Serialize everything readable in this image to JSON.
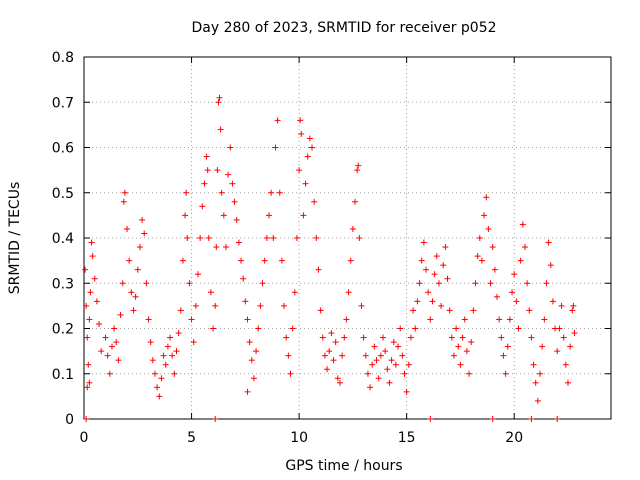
{
  "chart_data": {
    "type": "scatter",
    "title": "Day 280 of 2023, SRMTID for receiver p052",
    "xlabel": "GPS time / hours",
    "ylabel": "SRMTID / TECUs",
    "xlim": [
      0,
      24.5
    ],
    "ylim": [
      0,
      0.8
    ],
    "x_ticks": [
      0,
      5,
      10,
      15,
      20
    ],
    "y_ticks": [
      0,
      0.1,
      0.2,
      0.3,
      0.4,
      0.5,
      0.6,
      0.7,
      0.8
    ],
    "x_tick_labels": [
      "0",
      "5",
      "10",
      "15",
      "20"
    ],
    "y_tick_labels": [
      "0",
      "0.1",
      "0.2",
      "0.3",
      "0.4",
      "0.5",
      "0.6",
      "0.7",
      "0.8"
    ],
    "grid": true,
    "marker": "plus",
    "marker_color": "#ff0000",
    "series": [
      {
        "name": "SRMTID",
        "points": [
          [
            0.05,
            0.33
          ],
          [
            0.1,
            0.25
          ],
          [
            0.15,
            0.18
          ],
          [
            0.2,
            0.12
          ],
          [
            0.25,
            0.22
          ],
          [
            0.3,
            0.28
          ],
          [
            0.35,
            0.39
          ],
          [
            0.4,
            0.36
          ],
          [
            0.5,
            0.31
          ],
          [
            0.6,
            0.26
          ],
          [
            0.7,
            0.21
          ],
          [
            0.8,
            0.15
          ],
          [
            0.25,
            0.08
          ],
          [
            0.15,
            0.07
          ],
          [
            1.0,
            0.18
          ],
          [
            1.1,
            0.14
          ],
          [
            1.2,
            0.1
          ],
          [
            1.3,
            0.16
          ],
          [
            1.4,
            0.2
          ],
          [
            1.5,
            0.17
          ],
          [
            1.6,
            0.13
          ],
          [
            1.7,
            0.23
          ],
          [
            1.8,
            0.3
          ],
          [
            1.85,
            0.48
          ],
          [
            1.9,
            0.5
          ],
          [
            2.0,
            0.42
          ],
          [
            2.1,
            0.35
          ],
          [
            2.2,
            0.28
          ],
          [
            2.3,
            0.24
          ],
          [
            2.4,
            0.27
          ],
          [
            2.5,
            0.33
          ],
          [
            2.6,
            0.38
          ],
          [
            2.7,
            0.44
          ],
          [
            2.8,
            0.41
          ],
          [
            2.9,
            0.3
          ],
          [
            3.0,
            0.22
          ],
          [
            3.1,
            0.17
          ],
          [
            3.2,
            0.13
          ],
          [
            3.3,
            0.1
          ],
          [
            3.4,
            0.07
          ],
          [
            3.5,
            0.05
          ],
          [
            3.6,
            0.09
          ],
          [
            3.7,
            0.14
          ],
          [
            3.8,
            0.12
          ],
          [
            3.9,
            0.16
          ],
          [
            4.0,
            0.18
          ],
          [
            4.1,
            0.14
          ],
          [
            4.2,
            0.1
          ],
          [
            4.3,
            0.15
          ],
          [
            4.4,
            0.19
          ],
          [
            4.5,
            0.24
          ],
          [
            4.6,
            0.35
          ],
          [
            4.7,
            0.45
          ],
          [
            4.75,
            0.5
          ],
          [
            4.8,
            0.4
          ],
          [
            4.9,
            0.3
          ],
          [
            5.0,
            0.22
          ],
          [
            5.1,
            0.17
          ],
          [
            5.2,
            0.25
          ],
          [
            5.3,
            0.32
          ],
          [
            5.4,
            0.4
          ],
          [
            5.5,
            0.47
          ],
          [
            5.6,
            0.52
          ],
          [
            5.7,
            0.58
          ],
          [
            5.75,
            0.55
          ],
          [
            5.8,
            0.4
          ],
          [
            5.9,
            0.28
          ],
          [
            6.0,
            0.2
          ],
          [
            6.1,
            0.25
          ],
          [
            6.15,
            0.38
          ],
          [
            6.2,
            0.55
          ],
          [
            6.25,
            0.7
          ],
          [
            6.3,
            0.71
          ],
          [
            6.35,
            0.64
          ],
          [
            6.4,
            0.5
          ],
          [
            6.5,
            0.45
          ],
          [
            6.6,
            0.38
          ],
          [
            6.7,
            0.54
          ],
          [
            6.8,
            0.6
          ],
          [
            6.9,
            0.52
          ],
          [
            7.0,
            0.48
          ],
          [
            7.1,
            0.44
          ],
          [
            7.2,
            0.39
          ],
          [
            7.3,
            0.35
          ],
          [
            7.4,
            0.31
          ],
          [
            7.5,
            0.26
          ],
          [
            7.6,
            0.22
          ],
          [
            7.7,
            0.17
          ],
          [
            7.8,
            0.13
          ],
          [
            7.9,
            0.09
          ],
          [
            7.6,
            0.06
          ],
          [
            8.0,
            0.15
          ],
          [
            8.1,
            0.2
          ],
          [
            8.2,
            0.25
          ],
          [
            8.3,
            0.3
          ],
          [
            8.4,
            0.35
          ],
          [
            8.5,
            0.4
          ],
          [
            8.6,
            0.45
          ],
          [
            8.7,
            0.5
          ],
          [
            8.8,
            0.4
          ],
          [
            8.9,
            0.6
          ],
          [
            9.0,
            0.66
          ],
          [
            9.1,
            0.5
          ],
          [
            9.2,
            0.35
          ],
          [
            9.3,
            0.25
          ],
          [
            9.4,
            0.18
          ],
          [
            9.5,
            0.14
          ],
          [
            9.6,
            0.1
          ],
          [
            9.7,
            0.2
          ],
          [
            9.8,
            0.28
          ],
          [
            9.9,
            0.4
          ],
          [
            10.0,
            0.55
          ],
          [
            10.05,
            0.66
          ],
          [
            10.1,
            0.63
          ],
          [
            10.2,
            0.45
          ],
          [
            10.3,
            0.52
          ],
          [
            10.4,
            0.58
          ],
          [
            10.5,
            0.62
          ],
          [
            10.6,
            0.6
          ],
          [
            10.7,
            0.48
          ],
          [
            10.8,
            0.4
          ],
          [
            10.9,
            0.33
          ],
          [
            11.0,
            0.24
          ],
          [
            11.1,
            0.18
          ],
          [
            11.2,
            0.14
          ],
          [
            11.3,
            0.11
          ],
          [
            11.4,
            0.15
          ],
          [
            11.5,
            0.19
          ],
          [
            11.6,
            0.13
          ],
          [
            11.7,
            0.17
          ],
          [
            11.8,
            0.09
          ],
          [
            11.9,
            0.08
          ],
          [
            12.0,
            0.14
          ],
          [
            12.1,
            0.18
          ],
          [
            12.2,
            0.22
          ],
          [
            12.3,
            0.28
          ],
          [
            12.4,
            0.35
          ],
          [
            12.5,
            0.42
          ],
          [
            12.6,
            0.48
          ],
          [
            12.7,
            0.55
          ],
          [
            12.75,
            0.56
          ],
          [
            12.8,
            0.4
          ],
          [
            12.9,
            0.25
          ],
          [
            13.0,
            0.18
          ],
          [
            13.1,
            0.14
          ],
          [
            13.2,
            0.1
          ],
          [
            13.3,
            0.07
          ],
          [
            13.4,
            0.12
          ],
          [
            13.5,
            0.16
          ],
          [
            13.6,
            0.13
          ],
          [
            13.7,
            0.09
          ],
          [
            13.8,
            0.14
          ],
          [
            13.9,
            0.18
          ],
          [
            14.0,
            0.15
          ],
          [
            14.1,
            0.11
          ],
          [
            14.2,
            0.08
          ],
          [
            14.3,
            0.13
          ],
          [
            14.4,
            0.17
          ],
          [
            14.5,
            0.12
          ],
          [
            14.6,
            0.16
          ],
          [
            14.7,
            0.2
          ],
          [
            14.8,
            0.14
          ],
          [
            14.9,
            0.1
          ],
          [
            15.0,
            0.06
          ],
          [
            15.1,
            0.12
          ],
          [
            15.2,
            0.18
          ],
          [
            15.3,
            0.24
          ],
          [
            15.4,
            0.2
          ],
          [
            15.5,
            0.26
          ],
          [
            15.6,
            0.3
          ],
          [
            15.7,
            0.35
          ],
          [
            15.8,
            0.39
          ],
          [
            15.9,
            0.33
          ],
          [
            16.0,
            0.28
          ],
          [
            16.1,
            0.22
          ],
          [
            16.2,
            0.26
          ],
          [
            16.3,
            0.32
          ],
          [
            16.4,
            0.36
          ],
          [
            16.5,
            0.3
          ],
          [
            16.6,
            0.25
          ],
          [
            16.7,
            0.34
          ],
          [
            16.8,
            0.38
          ],
          [
            16.9,
            0.31
          ],
          [
            17.0,
            0.24
          ],
          [
            17.1,
            0.18
          ],
          [
            17.2,
            0.14
          ],
          [
            17.3,
            0.2
          ],
          [
            17.4,
            0.16
          ],
          [
            17.5,
            0.12
          ],
          [
            17.6,
            0.18
          ],
          [
            17.7,
            0.22
          ],
          [
            17.8,
            0.15
          ],
          [
            17.9,
            0.1
          ],
          [
            18.0,
            0.17
          ],
          [
            18.1,
            0.24
          ],
          [
            18.2,
            0.3
          ],
          [
            18.3,
            0.36
          ],
          [
            18.4,
            0.4
          ],
          [
            18.5,
            0.35
          ],
          [
            18.6,
            0.45
          ],
          [
            18.7,
            0.49
          ],
          [
            18.8,
            0.42
          ],
          [
            18.9,
            0.3
          ],
          [
            19.0,
            0.38
          ],
          [
            19.1,
            0.33
          ],
          [
            19.2,
            0.27
          ],
          [
            19.3,
            0.22
          ],
          [
            19.4,
            0.18
          ],
          [
            19.5,
            0.14
          ],
          [
            19.6,
            0.1
          ],
          [
            19.7,
            0.16
          ],
          [
            19.8,
            0.22
          ],
          [
            19.9,
            0.28
          ],
          [
            20.0,
            0.32
          ],
          [
            20.1,
            0.26
          ],
          [
            20.2,
            0.2
          ],
          [
            20.3,
            0.35
          ],
          [
            20.4,
            0.43
          ],
          [
            20.5,
            0.38
          ],
          [
            20.6,
            0.3
          ],
          [
            20.7,
            0.24
          ],
          [
            20.8,
            0.18
          ],
          [
            20.9,
            0.12
          ],
          [
            21.0,
            0.08
          ],
          [
            21.1,
            0.04
          ],
          [
            21.2,
            0.1
          ],
          [
            21.3,
            0.16
          ],
          [
            21.4,
            0.22
          ],
          [
            21.5,
            0.3
          ],
          [
            21.6,
            0.39
          ],
          [
            21.7,
            0.34
          ],
          [
            21.8,
            0.26
          ],
          [
            21.9,
            0.2
          ],
          [
            22.0,
            0.15
          ],
          [
            22.1,
            0.2
          ],
          [
            22.2,
            0.25
          ],
          [
            22.3,
            0.18
          ],
          [
            22.4,
            0.12
          ],
          [
            22.5,
            0.08
          ],
          [
            22.6,
            0.16
          ],
          [
            22.7,
            0.24
          ],
          [
            22.75,
            0.25
          ],
          [
            22.8,
            0.19
          ],
          [
            0.1,
            0.0
          ],
          [
            6.1,
            0.0
          ],
          [
            16.1,
            0.0
          ],
          [
            19.0,
            0.0
          ],
          [
            20.8,
            0.0
          ],
          [
            22.0,
            0.0
          ]
        ]
      }
    ]
  }
}
